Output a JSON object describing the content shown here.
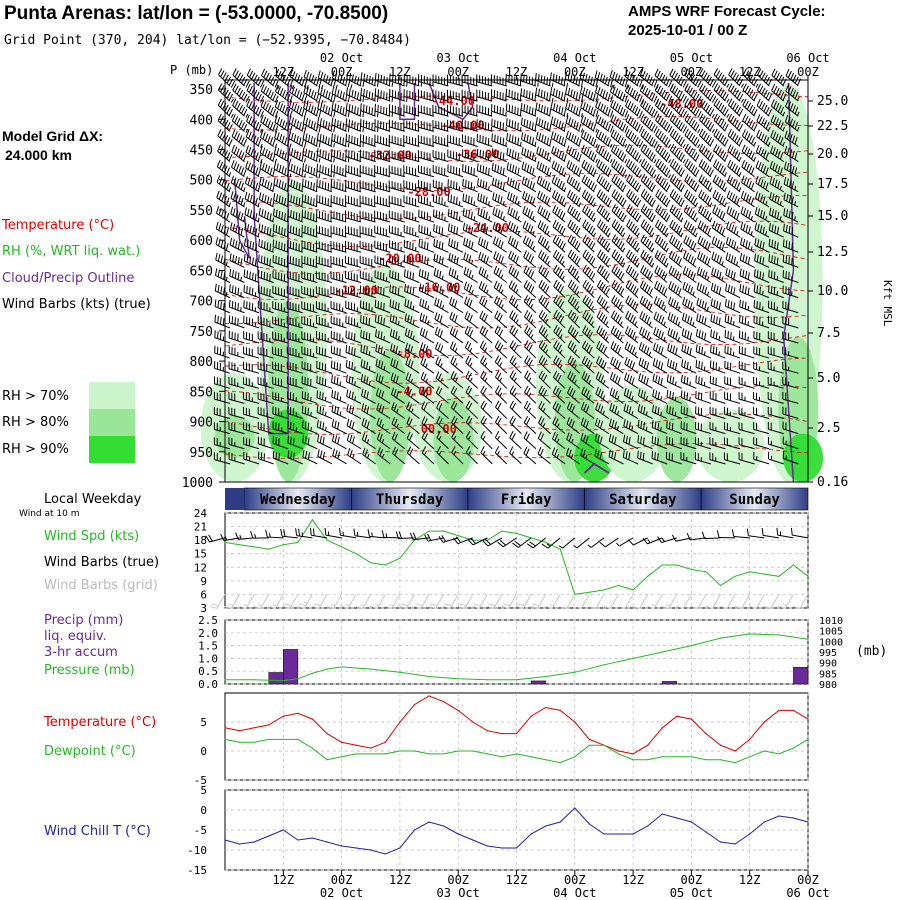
{
  "header": {
    "title": "Punta Arenas:  lat/lon = (-53.0000, -70.8500)",
    "subtitle": "Grid Point (370, 204) lat/lon = (−52.9395, −70.8484)",
    "cycle_title": "AMPS WRF Forecast Cycle:",
    "cycle_value": "2025-10-01 / 00  Z"
  },
  "left_panel": {
    "model_grid_label": "Model Grid ΔX:",
    "model_grid_value": "24.000 km",
    "legend": [
      {
        "text": "Temperature (°C)",
        "color": "#e00000"
      },
      {
        "text": "RH (%, WRT liq. wat.)",
        "color": "#22bb22"
      },
      {
        "text": "Cloud/Precip Outline",
        "color": "#6a2a9a"
      },
      {
        "text": "Wind Barbs (kts) (true)",
        "color": "#000000"
      }
    ],
    "rh_legend": [
      {
        "text": "RH > 70%",
        "color": "#ccf5cc"
      },
      {
        "text": "RH > 80%",
        "color": "#99e699"
      },
      {
        "text": "RH > 90%",
        "color": "#33dd33"
      }
    ]
  },
  "colors": {
    "temperature": "#e00000",
    "rh": "#22bb22",
    "cloud": "#6a2a9a",
    "precip_bar": "#6a2a9a",
    "wind_chill": "#2222aa",
    "dewpoint": "#22bb22",
    "weekday_bar_dark": "#2d3e86",
    "weekday_bar_light": "#e8eaf4"
  },
  "time_axis": {
    "top_ticks": [
      {
        "hour": 12,
        "label": "12Z"
      },
      {
        "hour": 24,
        "label": "00Z",
        "date": "02 Oct"
      },
      {
        "hour": 36,
        "label": "12Z"
      },
      {
        "hour": 48,
        "label": "00Z",
        "date": "03 Oct"
      },
      {
        "hour": 60,
        "label": "12Z"
      },
      {
        "hour": 72,
        "label": "00Z",
        "date": "04 Oct"
      },
      {
        "hour": 84,
        "label": "12Z"
      },
      {
        "hour": 96,
        "label": "00Z",
        "date": "05 Oct"
      },
      {
        "hour": 108,
        "label": "12Z"
      },
      {
        "hour": 120,
        "label": "00Z",
        "date": "06 Oct"
      }
    ],
    "range_hours": [
      0,
      120
    ]
  },
  "chart_data": [
    {
      "type": "heatmap",
      "panel": "cross-section",
      "ylabel": "P (mb)",
      "ylabel_right": "Kft MSL",
      "y_ticks": [
        350,
        400,
        450,
        500,
        550,
        600,
        650,
        700,
        750,
        800,
        850,
        900,
        950,
        1000
      ],
      "y_ticks_right": [
        "25.0",
        "22.5",
        "20.0",
        "17.5",
        "15.0",
        "12.5",
        "10.0",
        "7.5",
        "5.0",
        "2.5",
        "0.16"
      ],
      "temperature_labels": [
        {
          "hour": 47,
          "p": 370,
          "text": "-44.00"
        },
        {
          "hour": 94,
          "p": 375,
          "text": "-48.00"
        },
        {
          "hour": 49,
          "p": 410,
          "text": "-40.00"
        },
        {
          "hour": 52,
          "p": 458,
          "text": "-36.00"
        },
        {
          "hour": 34,
          "p": 460,
          "text": "-32.00"
        },
        {
          "hour": 42,
          "p": 520,
          "text": "-28.00"
        },
        {
          "hour": 54,
          "p": 580,
          "text": "-24.00"
        },
        {
          "hour": 36,
          "p": 630,
          "text": "-20.00"
        },
        {
          "hour": 44,
          "p": 678,
          "text": "-16.00"
        },
        {
          "hour": 27,
          "p": 683,
          "text": "-12.00"
        },
        {
          "hour": 39,
          "p": 788,
          "text": "-8.00"
        },
        {
          "hour": 39,
          "p": 850,
          "text": "-4.00"
        },
        {
          "hour": 44,
          "p": 912,
          "text": "00.00"
        }
      ]
    },
    {
      "type": "line",
      "panel": "wind",
      "y_ticks": [
        3,
        6,
        9,
        12,
        15,
        18,
        21,
        24
      ],
      "ylim": [
        3,
        24
      ],
      "series": [
        {
          "name": "Wind Spd (kts)",
          "x": [
            0,
            3,
            6,
            9,
            12,
            15,
            18,
            21,
            24,
            27,
            30,
            33,
            36,
            39,
            42,
            45,
            48,
            51,
            54,
            57,
            60,
            63,
            66,
            69,
            72,
            75,
            78,
            81,
            84,
            87,
            90,
            93,
            96,
            99,
            102,
            105,
            108,
            111,
            114,
            117,
            120
          ],
          "values": [
            17.5,
            17,
            16.5,
            16,
            17,
            17.5,
            22.5,
            18,
            16.5,
            15,
            13,
            12.5,
            14,
            18,
            20,
            20,
            19,
            18,
            18,
            20,
            19.5,
            18.5,
            17.5,
            16,
            6,
            6.5,
            7,
            8,
            7,
            10,
            12.5,
            12.5,
            11.5,
            11,
            8,
            10,
            11,
            10.5,
            10,
            12.5,
            10
          ]
        }
      ],
      "legend": [
        "Wind Spd (kts)",
        "Wind Barbs (true)",
        "Wind Barbs (grid)"
      ],
      "local_weekday_label": "Local Weekday",
      "wind_at_label": "Wind at 10 m",
      "weekdays": [
        {
          "name": "Wednesday",
          "start": 4,
          "end": 26
        },
        {
          "name": "Thursday",
          "start": 26,
          "end": 50
        },
        {
          "name": "Friday",
          "start": 50,
          "end": 74
        },
        {
          "name": "Saturday",
          "start": 74,
          "end": 98
        },
        {
          "name": "Sunday",
          "start": 98,
          "end": 120
        }
      ]
    },
    {
      "type": "bar",
      "panel": "precip-pressure",
      "y_ticks_left": [
        "0.0",
        "0.5",
        "1.0",
        "1.5",
        "2.0",
        "2.5"
      ],
      "ylim_left": [
        0,
        2.5
      ],
      "y_ticks_right": [
        "980",
        "985",
        "990",
        "995",
        "1000",
        "1005",
        "1010"
      ],
      "ylim_right": [
        980,
        1010
      ],
      "ylabel_right": "(mb)",
      "legend": [
        "Precip (mm)",
        "liq. equiv.",
        "3-hr accum",
        "Pressure (mb)"
      ],
      "series": [
        {
          "name": "Precip (mm)",
          "type": "bar",
          "x": [
            10.5,
            13.5,
            64.5,
            91.5,
            118.5
          ],
          "values": [
            0.45,
            1.35,
            0.12,
            0.1,
            0.65
          ]
        },
        {
          "name": "Pressure (mb)",
          "type": "line",
          "x": [
            0,
            6,
            12,
            15,
            18,
            21,
            24,
            30,
            36,
            42,
            48,
            54,
            60,
            66,
            72,
            78,
            84,
            90,
            96,
            102,
            108,
            114,
            120
          ],
          "values": [
            982,
            982,
            981.5,
            982.5,
            985,
            987,
            988,
            987,
            985.5,
            983.5,
            982.5,
            982,
            982,
            983.5,
            985.5,
            989,
            992,
            995,
            998,
            1001.5,
            1003.5,
            1003,
            1001
          ]
        }
      ]
    },
    {
      "type": "line",
      "panel": "temperature-dewpoint",
      "y_ticks": [
        -5,
        0,
        5
      ],
      "ylim": [
        -5,
        10
      ],
      "series": [
        {
          "name": "Temperature (°C)",
          "x": [
            0,
            3,
            6,
            9,
            12,
            15,
            18,
            21,
            24,
            27,
            30,
            33,
            36,
            39,
            42,
            45,
            48,
            51,
            54,
            57,
            60,
            63,
            66,
            69,
            72,
            75,
            78,
            81,
            84,
            87,
            90,
            93,
            96,
            99,
            102,
            105,
            108,
            111,
            114,
            117,
            120
          ],
          "values": [
            4,
            3.5,
            4,
            4.5,
            6,
            6.5,
            5.5,
            3,
            1.5,
            1,
            0.5,
            1.5,
            5,
            8,
            9.5,
            8.5,
            7,
            5,
            3.5,
            3,
            3,
            6,
            7.5,
            7,
            5,
            2,
            1,
            0,
            -0.5,
            1,
            4,
            6,
            5.5,
            3,
            1,
            0,
            2,
            5,
            7,
            7,
            5.5
          ]
        },
        {
          "name": "Dewpoint (°C)",
          "x": [
            0,
            3,
            6,
            9,
            12,
            15,
            18,
            21,
            24,
            27,
            30,
            33,
            36,
            39,
            42,
            45,
            48,
            51,
            54,
            57,
            60,
            63,
            66,
            69,
            72,
            75,
            78,
            81,
            84,
            87,
            90,
            93,
            96,
            99,
            102,
            105,
            108,
            111,
            114,
            117,
            120
          ],
          "values": [
            2,
            1.5,
            1.5,
            2,
            2,
            2,
            0.5,
            -1.5,
            -1,
            -0.5,
            -0.5,
            -0.5,
            0,
            0,
            -0.5,
            -0.5,
            0,
            0,
            -0.5,
            -1,
            -0.5,
            -1,
            -1.5,
            -2,
            -1,
            1,
            1,
            -0.5,
            -1.5,
            -1.5,
            -1,
            -1,
            -1,
            -1.5,
            -1.5,
            -2,
            -1,
            0,
            -0.5,
            0.5,
            2
          ]
        }
      ]
    },
    {
      "type": "line",
      "panel": "wind-chill",
      "y_ticks": [
        -15,
        -10,
        -5,
        0,
        5
      ],
      "ylim": [
        -15,
        5
      ],
      "series": [
        {
          "name": "Wind Chill T (°C)",
          "x": [
            0,
            3,
            6,
            9,
            12,
            15,
            18,
            21,
            24,
            27,
            30,
            33,
            36,
            39,
            42,
            45,
            48,
            51,
            54,
            57,
            60,
            63,
            66,
            69,
            72,
            75,
            78,
            81,
            84,
            87,
            90,
            93,
            96,
            99,
            102,
            105,
            108,
            111,
            114,
            117,
            120
          ],
          "values": [
            -7.5,
            -8.5,
            -8,
            -6.5,
            -5,
            -7.5,
            -7,
            -8,
            -9,
            -9.5,
            -10,
            -11,
            -9.5,
            -5,
            -3,
            -4,
            -6,
            -7.5,
            -9,
            -9.5,
            -9.5,
            -6,
            -4,
            -3,
            0.5,
            -3.5,
            -6,
            -6,
            -6,
            -4,
            -1,
            -2,
            -3,
            -5.5,
            -8,
            -8.5,
            -6,
            -3,
            -1.5,
            -2,
            -3
          ]
        }
      ],
      "bottom_ticks": [
        {
          "hour": 12,
          "label": "12Z"
        },
        {
          "hour": 24,
          "label": "00Z",
          "date": "02 Oct"
        },
        {
          "hour": 36,
          "label": "12Z"
        },
        {
          "hour": 48,
          "label": "00Z",
          "date": "03 Oct"
        },
        {
          "hour": 60,
          "label": "12Z"
        },
        {
          "hour": 72,
          "label": "00Z",
          "date": "04 Oct"
        },
        {
          "hour": 84,
          "label": "12Z"
        },
        {
          "hour": 96,
          "label": "00Z",
          "date": "05 Oct"
        },
        {
          "hour": 108,
          "label": "12Z"
        },
        {
          "hour": 120,
          "label": "00Z",
          "date": "06 Oct"
        }
      ]
    }
  ]
}
